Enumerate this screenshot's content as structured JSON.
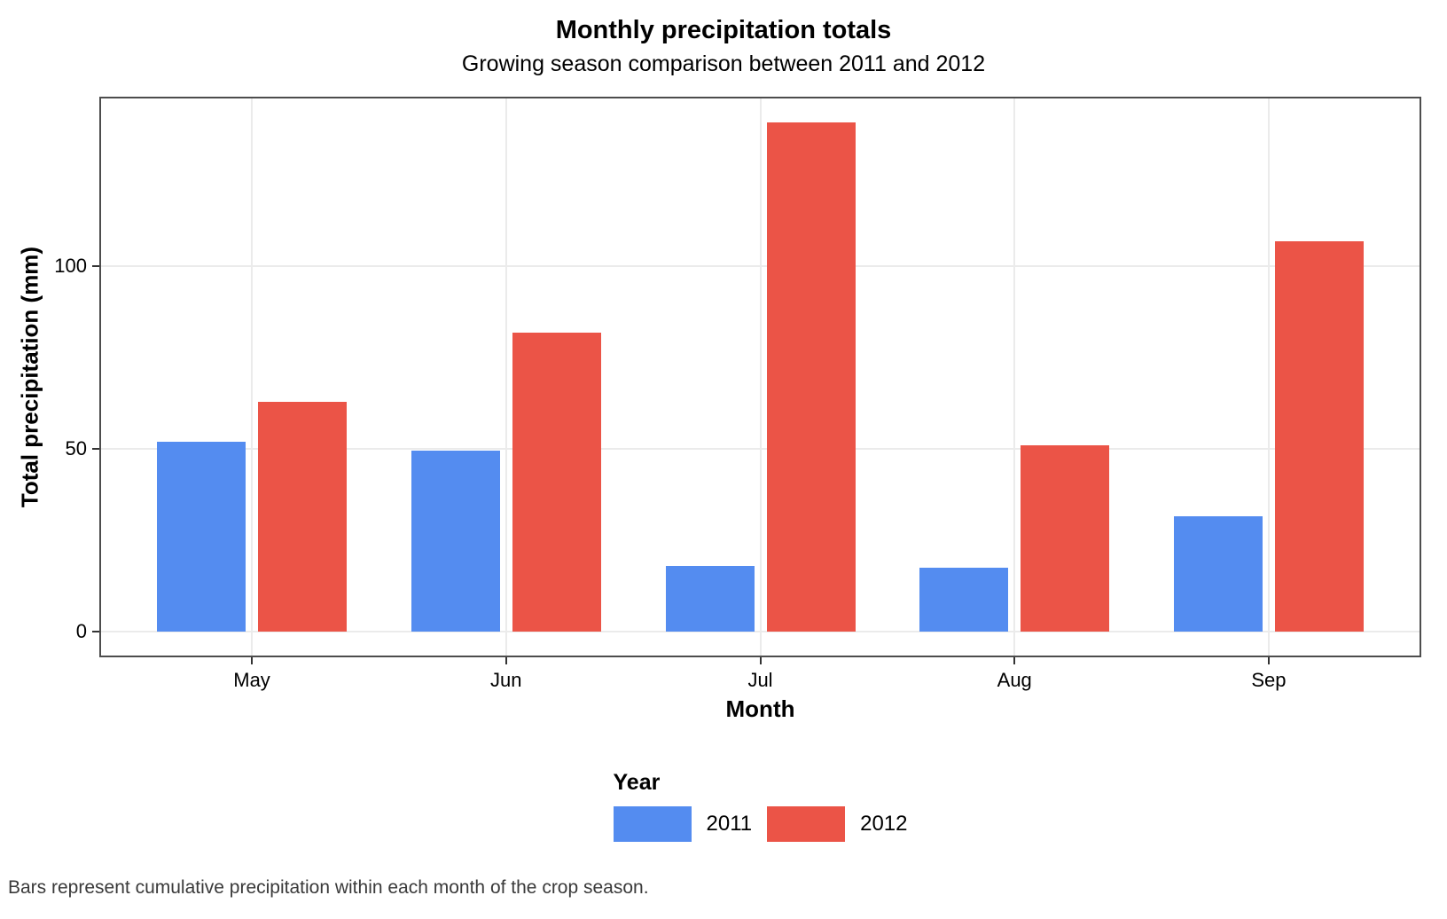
{
  "chart_data": {
    "type": "bar",
    "title": "Monthly precipitation totals",
    "subtitle": "Growing season comparison between 2011 and 2012",
    "xlabel": "Month",
    "ylabel": "Total precipitation (mm)",
    "caption": "Bars represent cumulative precipitation within each month of the crop season.",
    "categories": [
      "May",
      "Jun",
      "Jul",
      "Aug",
      "Sep"
    ],
    "series": [
      {
        "name": "2011",
        "color": "#548CF0",
        "values": [
          52,
          49.5,
          18,
          17.5,
          31.5
        ]
      },
      {
        "name": "2012",
        "color": "#EB5447",
        "values": [
          63,
          82,
          139.5,
          51,
          107
        ]
      }
    ],
    "legend": {
      "title": "Year",
      "position": "bottom",
      "entries": [
        "2011",
        "2012"
      ]
    },
    "yticks": [
      0,
      50,
      100
    ],
    "ylim": [
      -7,
      146.5
    ],
    "grid": true
  },
  "colors": {
    "grid": "#EBEBEB",
    "panel_border": "#4D4D4D",
    "tick": "#333333",
    "caption_text": "#3A3A3A",
    "series_2011": "#548CF0",
    "series_2012": "#EB5447"
  }
}
